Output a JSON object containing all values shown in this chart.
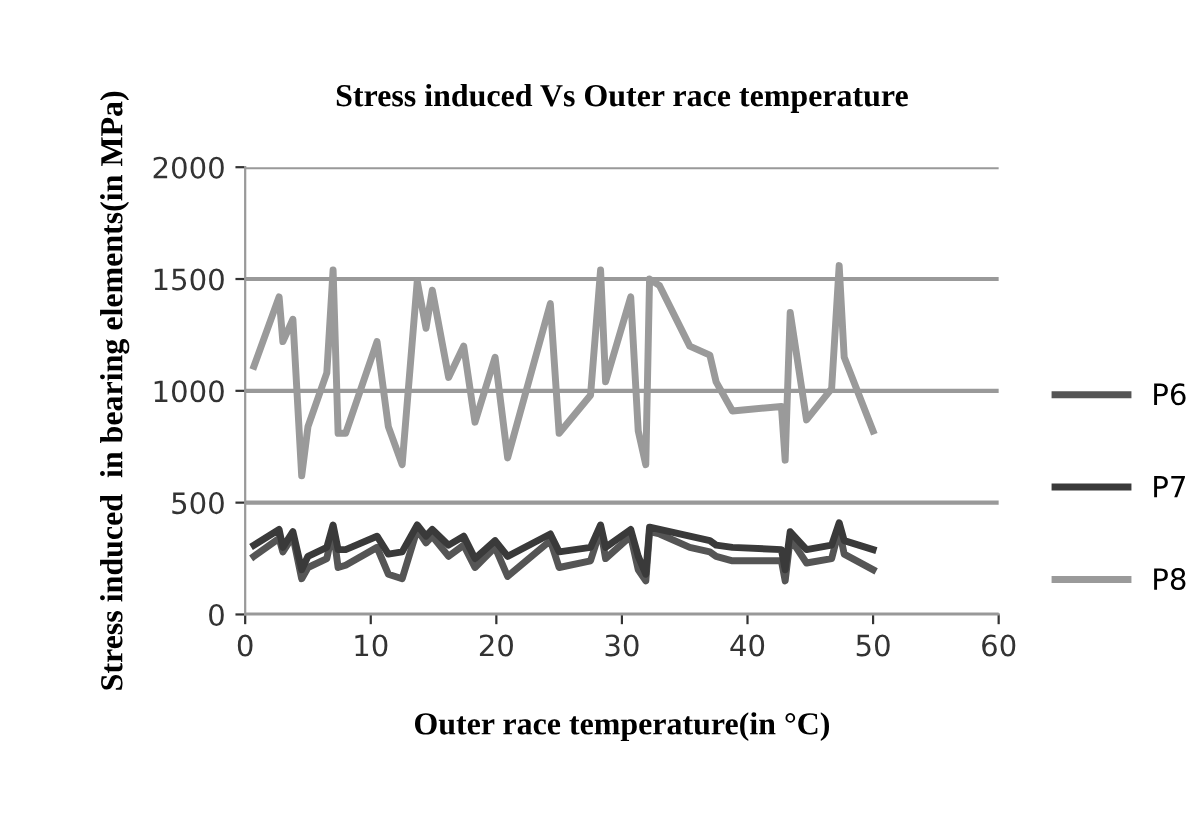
{
  "chart_data": {
    "type": "line",
    "title": "Stress induced Vs Outer race temperature",
    "xlabel": "Outer race temperature(in °C)",
    "ylabel": "Stress induced  in bearing elements(in MPa)",
    "x": [
      0.7,
      2.7,
      3.0,
      3.8,
      4.5,
      5.0,
      6.5,
      7.0,
      7.4,
      8.0,
      10.5,
      11.4,
      12.5,
      13.7,
      14.4,
      14.9,
      16.2,
      17.4,
      18.3,
      19.9,
      20.9,
      24.3,
      25.0,
      27.5,
      28.3,
      28.7,
      30.7,
      31.3,
      31.9,
      32.2,
      33.0,
      35.4,
      37.0,
      37.5,
      38.8,
      42.7,
      43.0,
      43.4,
      44.7,
      46.7,
      47.3,
      47.7,
      50.0
    ],
    "series": [
      {
        "name": "P6",
        "color": "#555555",
        "values": [
          260,
          340,
          280,
          350,
          160,
          210,
          250,
          380,
          210,
          220,
          300,
          180,
          160,
          380,
          320,
          350,
          260,
          310,
          210,
          300,
          170,
          330,
          210,
          240,
          380,
          250,
          350,
          200,
          150,
          370,
          360,
          300,
          280,
          260,
          240,
          240,
          150,
          340,
          230,
          250,
          380,
          270,
          200
        ]
      },
      {
        "name": "P7",
        "color": "#3a3a3a",
        "values": [
          310,
          380,
          300,
          370,
          200,
          260,
          300,
          400,
          290,
          290,
          350,
          270,
          280,
          400,
          350,
          380,
          310,
          350,
          250,
          330,
          260,
          360,
          280,
          300,
          400,
          300,
          380,
          260,
          180,
          390,
          380,
          350,
          330,
          310,
          300,
          290,
          200,
          370,
          290,
          310,
          410,
          330,
          290
        ]
      },
      {
        "name": "P8",
        "color": "#9a9a9a",
        "values": [
          1110,
          1420,
          1220,
          1320,
          620,
          840,
          1080,
          1540,
          810,
          810,
          1220,
          840,
          670,
          1490,
          1280,
          1450,
          1060,
          1200,
          860,
          1150,
          700,
          1390,
          810,
          980,
          1540,
          1040,
          1420,
          820,
          670,
          1500,
          1470,
          1200,
          1160,
          1040,
          910,
          930,
          690,
          1350,
          870,
          1010,
          1560,
          1150,
          820
        ]
      }
    ],
    "xlim": [
      0,
      60
    ],
    "xticks": [
      0,
      10,
      20,
      30,
      40,
      50,
      60
    ],
    "ylim": [
      0,
      2000
    ],
    "yticks": [
      0,
      500,
      1000,
      1500,
      2000
    ],
    "grid": "y",
    "legend": "right",
    "marker": "none",
    "line_style": "solid"
  }
}
